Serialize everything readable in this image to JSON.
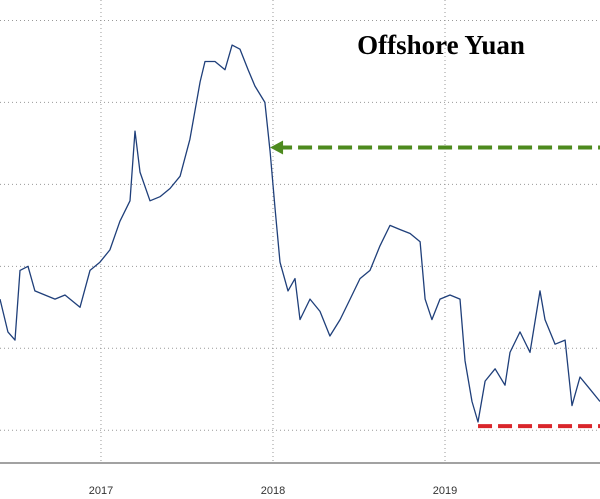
{
  "chart_data": {
    "type": "line",
    "title": "Offshore Yuan",
    "x": [
      2016.913,
      2016.959,
      2017.0,
      2017.029,
      2017.076,
      2017.116,
      2017.174,
      2017.233,
      2017.291,
      2017.378,
      2017.436,
      2017.494,
      2017.552,
      2017.61,
      2017.669,
      2017.698,
      2017.727,
      2017.785,
      2017.843,
      2017.901,
      2017.96,
      2018.017,
      2018.076,
      2018.105,
      2018.163,
      2018.221,
      2018.262,
      2018.308,
      2018.355,
      2018.395,
      2018.453,
      2018.483,
      2018.512,
      2018.541,
      2018.587,
      2018.628,
      2018.657,
      2018.715,
      2018.773,
      2018.831,
      2018.89,
      2018.948,
      2019.006,
      2019.064,
      2019.122,
      2019.18,
      2019.238,
      2019.297,
      2019.355,
      2019.384,
      2019.424,
      2019.471,
      2019.529,
      2019.587,
      2019.616,
      2019.657,
      2019.692,
      2019.733,
      2019.791,
      2019.849,
      2019.878,
      2019.936,
      2019.994,
      2020.052,
      2020.081,
      2020.14,
      2020.198,
      2020.238,
      2020.285,
      2020.343,
      2020.401
    ],
    "series": [
      {
        "color": "#1f3f7a",
        "values": [
          6.88,
          6.96,
          6.98,
          6.81,
          6.8,
          6.86,
          6.87,
          6.88,
          6.87,
          6.9,
          6.81,
          6.79,
          6.76,
          6.69,
          6.64,
          6.47,
          6.57,
          6.64,
          6.63,
          6.61,
          6.58,
          6.49,
          6.35,
          6.3,
          6.3,
          6.32,
          6.26,
          6.27,
          6.32,
          6.36,
          6.4,
          6.52,
          6.66,
          6.79,
          6.86,
          6.83,
          6.93,
          6.88,
          6.91,
          6.97,
          6.93,
          6.88,
          6.83,
          6.81,
          6.75,
          6.7,
          6.71,
          6.72,
          6.74,
          6.88,
          6.93,
          6.88,
          6.87,
          6.88,
          7.03,
          7.13,
          7.18,
          7.08,
          7.05,
          7.09,
          7.01,
          6.96,
          7.01,
          6.86,
          6.93,
          6.99,
          6.98,
          7.14,
          7.07,
          7.1,
          7.13
        ]
      }
    ],
    "reference_lines": [
      {
        "y": 6.51,
        "x": 2018.483,
        "color": "#4d8a1e",
        "arrow": true
      },
      {
        "y": 7.19,
        "x": 2019.692,
        "color": "#d9262b",
        "arrow": false
      }
    ],
    "xlim": [
      2016.913,
      2020.401
    ],
    "xticks": [
      {
        "value": 2017.5,
        "label": "2017"
      },
      {
        "value": 2018.5,
        "label": "2018"
      },
      {
        "value": 2019.5,
        "label": "2019"
      }
    ],
    "ylim": [
      6.15,
      7.28
    ],
    "y_inverted": true,
    "yticks": [
      6.2,
      6.4,
      6.6,
      6.8,
      7.0,
      7.2
    ],
    "grid": true
  }
}
